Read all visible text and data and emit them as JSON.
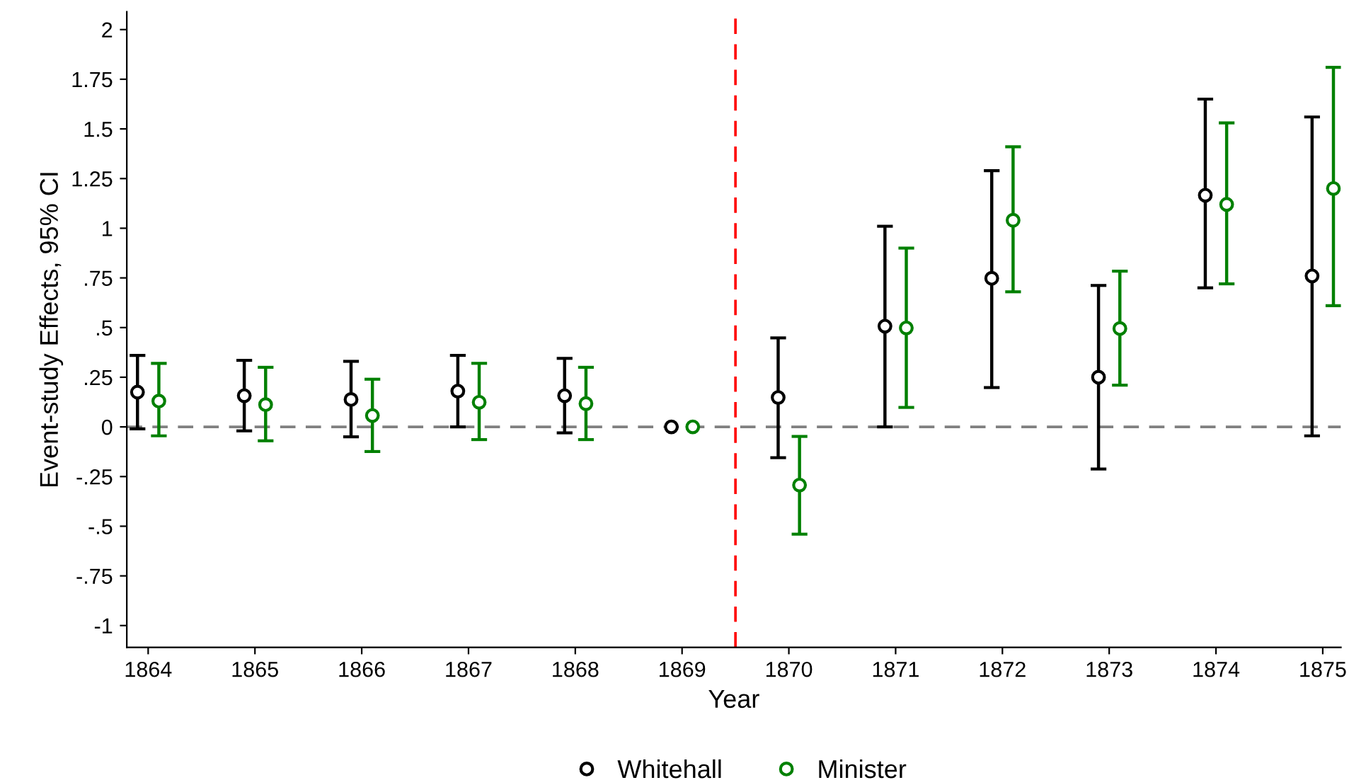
{
  "chart_data": {
    "type": "scatter",
    "xlabel": "Year",
    "ylabel": "Event-study Effects, 95% CI",
    "series": [
      {
        "name": "Whitehall",
        "color": "#000000",
        "x": [
          1863.9,
          1864.9,
          1865.9,
          1866.9,
          1867.9,
          1868.9,
          1869.9,
          1870.9,
          1871.9,
          1872.9,
          1873.9,
          1874.9
        ],
        "values": [
          0.175,
          0.157,
          0.138,
          0.18,
          0.157,
          0,
          0.148,
          0.507,
          0.748,
          0.25,
          1.166,
          0.76
        ],
        "errors": [
          [
            -0.01,
            0.36
          ],
          [
            -0.02,
            0.335
          ],
          [
            -0.05,
            0.33
          ],
          [
            0,
            0.36
          ],
          [
            -0.03,
            0.345
          ],
          null,
          [
            -0.155,
            0.448
          ],
          [
            0,
            1.01
          ],
          [
            0.198,
            1.29
          ],
          [
            -0.212,
            0.712
          ],
          [
            0.7,
            1.65
          ],
          [
            -0.045,
            1.56
          ]
        ]
      },
      {
        "name": "Minister",
        "color": "#008000",
        "x": [
          1864.1,
          1865.1,
          1866.1,
          1867.1,
          1868.1,
          1869.1,
          1870.1,
          1871.1,
          1872.1,
          1873.1,
          1874.1,
          1875.1
        ],
        "values": [
          0.13,
          0.112,
          0.057,
          0.124,
          0.117,
          0,
          -0.293,
          0.498,
          1.04,
          0.495,
          1.12,
          1.2
        ],
        "errors": [
          [
            -0.045,
            0.32
          ],
          [
            -0.07,
            0.3
          ],
          [
            -0.124,
            0.24
          ],
          [
            -0.064,
            0.32
          ],
          [
            -0.064,
            0.3
          ],
          null,
          [
            -0.54,
            -0.048
          ],
          [
            0.098,
            0.9
          ],
          [
            0.68,
            1.41
          ],
          [
            0.21,
            0.784
          ],
          [
            0.72,
            1.53
          ],
          [
            0.61,
            1.81
          ]
        ]
      }
    ],
    "xlim": [
      1863.8,
      1875.17
    ],
    "xticks": [
      1864,
      1865,
      1866,
      1867,
      1868,
      1869,
      1870,
      1871,
      1872,
      1873,
      1874,
      1875
    ],
    "ylim": [
      -1.11,
      2.09
    ],
    "yticks": [
      {
        "value": -1,
        "label": "-1"
      },
      {
        "value": -0.75,
        "label": "-.75"
      },
      {
        "value": -0.5,
        "label": "-.5"
      },
      {
        "value": -0.25,
        "label": "-.25"
      },
      0,
      {
        "value": 0.25,
        "label": ".25"
      },
      {
        "value": 0.5,
        "label": ".5"
      },
      {
        "value": 0.75,
        "label": ".75"
      },
      1,
      {
        "value": 1.25,
        "label": "1.25"
      },
      {
        "value": 1.5,
        "label": "1.5"
      },
      {
        "value": 1.75,
        "label": "1.75"
      },
      2
    ],
    "ref_lines": [
      {
        "axis": "y",
        "value": 0,
        "color": "#808080",
        "line_style": "dashed"
      },
      {
        "axis": "x",
        "value": 1869.5,
        "color": "#ff0000",
        "line_style": "dashed"
      }
    ],
    "marker": "circle",
    "grid": false,
    "legend": "bottom"
  }
}
